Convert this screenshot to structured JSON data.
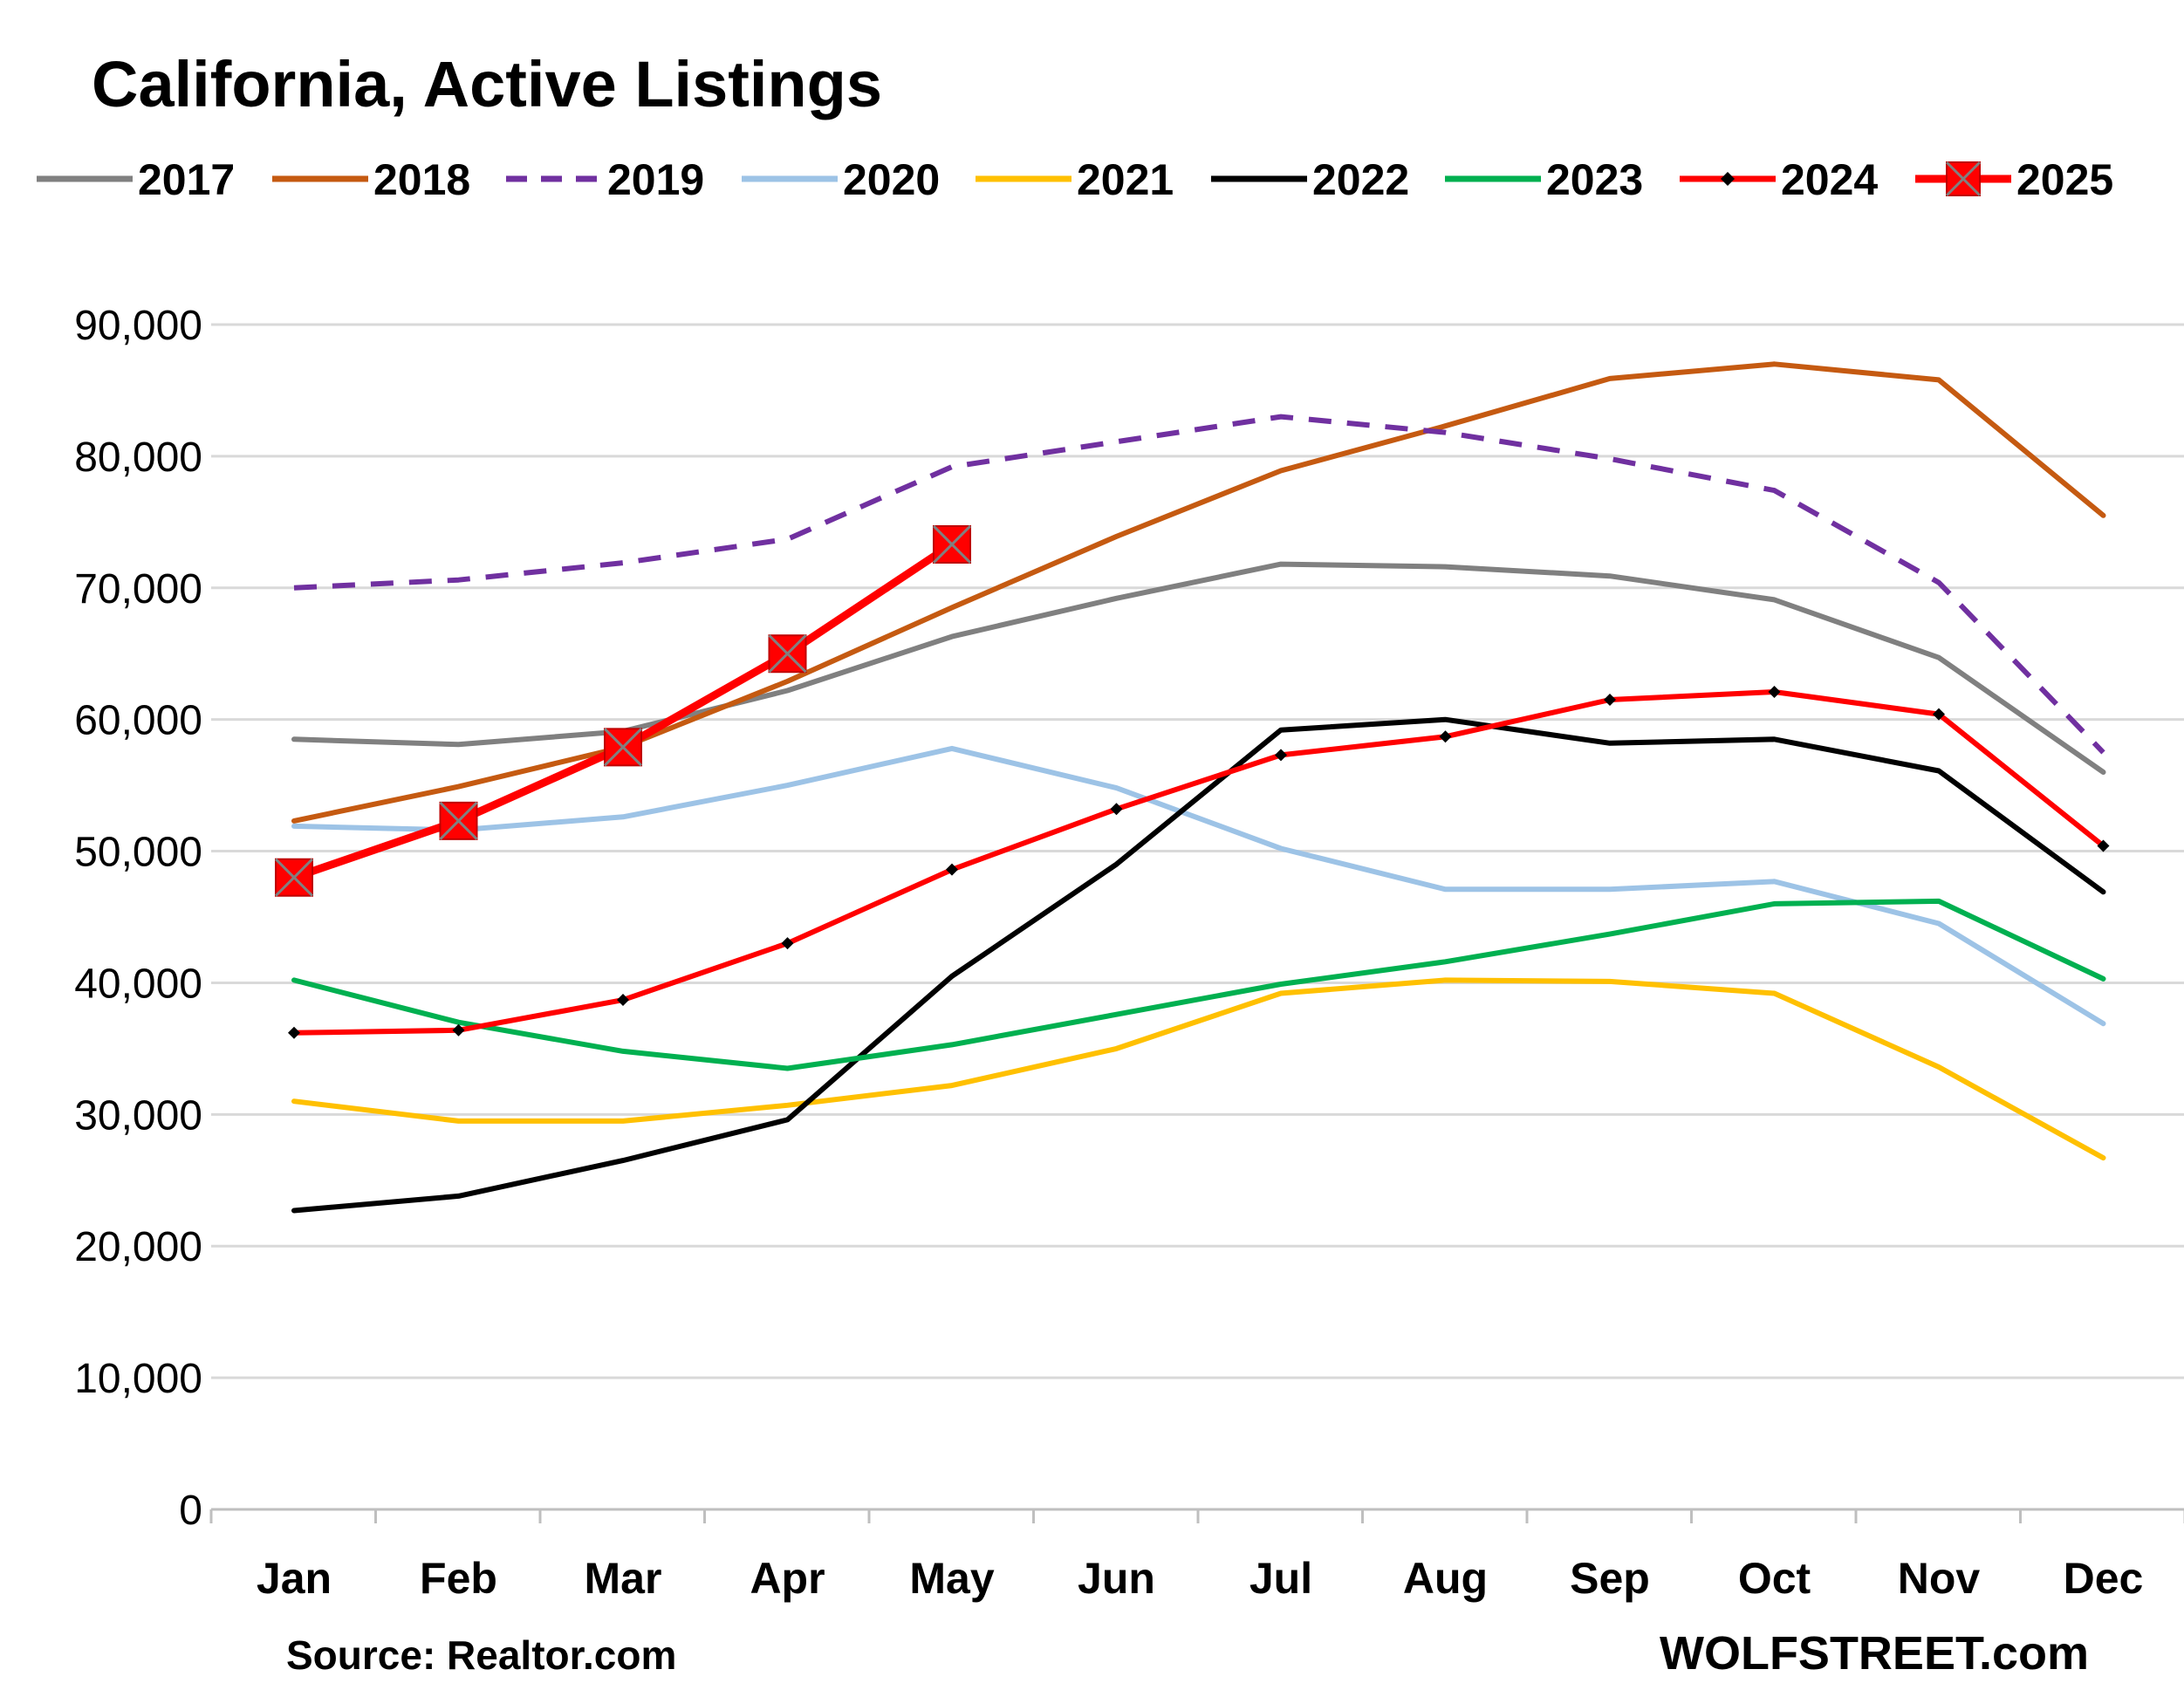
{
  "colors": {
    "2017": "#808080",
    "2018": "#c55a11",
    "2019": "#7030a0",
    "2020": "#9dc3e6",
    "2021": "#ffc000",
    "2022": "#000000",
    "2023": "#00b050",
    "2024": "#ff0000",
    "2025": "#ff0000",
    "grid": "#d9d9d9",
    "axis": "#bfbfbf"
  },
  "chart_data": {
    "type": "line",
    "title": "California, Active Listings",
    "xlabel": "",
    "ylabel": "",
    "categories": [
      "Jan",
      "Feb",
      "Mar",
      "Apr",
      "May",
      "Jun",
      "Jul",
      "Aug",
      "Sep",
      "Oct",
      "Nov",
      "Dec"
    ],
    "ylim": [
      0,
      90000
    ],
    "yticks": [
      0,
      10000,
      20000,
      30000,
      40000,
      50000,
      60000,
      70000,
      80000,
      90000
    ],
    "ytick_labels": [
      "0",
      "10,000",
      "20,000",
      "30,000",
      "40,000",
      "50,000",
      "60,000",
      "70,000",
      "80,000",
      "90,000"
    ],
    "grid": true,
    "legend_position": "top",
    "series": [
      {
        "name": "2017",
        "style": "solid",
        "marker": "none",
        "values": [
          58500,
          58100,
          59100,
          62200,
          66300,
          69200,
          71800,
          71600,
          70900,
          69100,
          64700,
          56000
        ]
      },
      {
        "name": "2018",
        "style": "solid",
        "marker": "none",
        "values": [
          52300,
          54900,
          57900,
          62900,
          68500,
          73900,
          78900,
          82300,
          85900,
          87000,
          85800,
          75500
        ]
      },
      {
        "name": "2019",
        "style": "dashed",
        "marker": "none",
        "values": [
          70000,
          70600,
          71900,
          73700,
          79200,
          81100,
          83000,
          81800,
          79800,
          77400,
          70400,
          57500
        ]
      },
      {
        "name": "2020",
        "style": "solid",
        "marker": "none",
        "values": [
          51900,
          51600,
          52600,
          55000,
          57800,
          54800,
          50200,
          47100,
          47100,
          47700,
          44500,
          36900
        ]
      },
      {
        "name": "2021",
        "style": "solid",
        "marker": "none",
        "values": [
          31000,
          29500,
          29500,
          30700,
          32200,
          35000,
          39200,
          40200,
          40100,
          39200,
          33600,
          26700
        ]
      },
      {
        "name": "2022",
        "style": "solid",
        "marker": "none",
        "values": [
          22700,
          23800,
          26500,
          29600,
          40500,
          49000,
          59200,
          60000,
          58200,
          58500,
          56100,
          46900
        ]
      },
      {
        "name": "2023",
        "style": "solid",
        "marker": "none",
        "values": [
          40200,
          37000,
          34800,
          33500,
          35300,
          37600,
          39900,
          41600,
          43700,
          46000,
          46200,
          40300
        ]
      },
      {
        "name": "2024",
        "style": "solid",
        "marker": "diamond",
        "values": [
          36200,
          36400,
          38700,
          43000,
          48600,
          53200,
          57300,
          58700,
          61500,
          62100,
          60400,
          50400
        ]
      },
      {
        "name": "2025",
        "style": "solid",
        "marker": "square-x",
        "values": [
          48000,
          52300,
          57900,
          65000,
          73300,
          null,
          null,
          null,
          null,
          null,
          null,
          null
        ]
      }
    ]
  },
  "footer": {
    "source": "Source: Realtor.com",
    "brand": "WOLFSTREET.com"
  }
}
